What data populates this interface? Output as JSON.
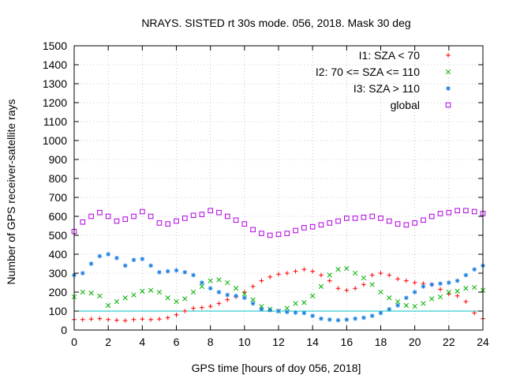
{
  "chart_data": {
    "type": "scatter",
    "title": "NRAYS. SISTED rt 30s mode. 056, 2018. Mask 30 deg",
    "xlabel": "GPS time [hours of doy 056, 2018]",
    "ylabel": "Number of GPS receiver-satellite rays",
    "xlim": [
      0,
      24
    ],
    "ylim": [
      0,
      1500
    ],
    "xticks": [
      0,
      2,
      4,
      6,
      8,
      10,
      12,
      14,
      16,
      18,
      20,
      22,
      24
    ],
    "yticks": [
      0,
      100,
      200,
      300,
      400,
      500,
      600,
      700,
      800,
      900,
      1000,
      1100,
      1200,
      1300,
      1400,
      1500
    ],
    "grid": true,
    "legend_position": "top-right",
    "reference_line": {
      "y": 100,
      "color": "#00c0c0"
    },
    "series": [
      {
        "name": "I1: SZA < 70",
        "marker": "plus",
        "color": "#ff0000",
        "x": [
          0,
          0.5,
          1,
          1.5,
          2,
          2.5,
          3,
          3.5,
          4,
          4.5,
          5,
          5.5,
          6,
          6.5,
          7,
          7.5,
          8,
          8.5,
          9,
          9.5,
          10,
          10.5,
          11,
          11.5,
          12,
          12.5,
          13,
          13.5,
          14,
          14.5,
          15,
          15.5,
          16,
          16.5,
          17,
          17.5,
          18,
          18.5,
          19,
          19.5,
          20,
          20.5,
          21,
          21.5,
          22,
          22.5,
          23,
          23.5,
          24
        ],
        "y": [
          55,
          55,
          58,
          60,
          55,
          52,
          50,
          55,
          58,
          55,
          58,
          65,
          80,
          100,
          115,
          118,
          125,
          140,
          160,
          175,
          200,
          230,
          260,
          280,
          295,
          300,
          310,
          320,
          310,
          290,
          260,
          220,
          210,
          220,
          240,
          290,
          300,
          290,
          270,
          260,
          250,
          245,
          240,
          215,
          190,
          180,
          150,
          90,
          60
        ]
      },
      {
        "name": "I2: 70 <= SZA <= 110",
        "marker": "x",
        "color": "#00b000",
        "x": [
          0,
          0.5,
          1,
          1.5,
          2,
          2.5,
          3,
          3.5,
          4,
          4.5,
          5,
          5.5,
          6,
          6.5,
          7,
          7.5,
          8,
          8.5,
          9,
          9.5,
          10,
          10.5,
          11,
          11.5,
          12,
          12.5,
          13,
          13.5,
          14,
          14.5,
          15,
          15.5,
          16,
          16.5,
          17,
          17.5,
          18,
          18.5,
          19,
          19.5,
          20,
          20.5,
          21,
          21.5,
          22,
          22.5,
          23,
          23.5,
          24
        ],
        "y": [
          175,
          200,
          195,
          180,
          130,
          150,
          170,
          185,
          205,
          210,
          200,
          170,
          150,
          165,
          200,
          230,
          260,
          265,
          250,
          220,
          190,
          160,
          125,
          110,
          100,
          115,
          140,
          145,
          180,
          230,
          290,
          320,
          325,
          300,
          275,
          240,
          200,
          170,
          150,
          130,
          125,
          140,
          165,
          175,
          200,
          205,
          220,
          225,
          210
        ]
      },
      {
        "name": "I3: SZA > 110",
        "marker": "star",
        "color": "#1a7fe0",
        "x": [
          0,
          0.5,
          1,
          1.5,
          2,
          2.5,
          3,
          3.5,
          4,
          4.5,
          5,
          5.5,
          6,
          6.5,
          7,
          7.5,
          8,
          8.5,
          9,
          9.5,
          10,
          10.5,
          11,
          11.5,
          12,
          12.5,
          13,
          13.5,
          14,
          14.5,
          15,
          15.5,
          16,
          16.5,
          17,
          17.5,
          18,
          18.5,
          19,
          19.5,
          20,
          20.5,
          21,
          21.5,
          22,
          22.5,
          23,
          23.5,
          24
        ],
        "y": [
          290,
          300,
          350,
          390,
          400,
          380,
          340,
          370,
          375,
          340,
          305,
          310,
          315,
          305,
          290,
          250,
          220,
          200,
          185,
          180,
          170,
          140,
          110,
          105,
          100,
          95,
          92,
          90,
          75,
          60,
          55,
          52,
          55,
          60,
          65,
          75,
          90,
          110,
          130,
          170,
          200,
          230,
          240,
          245,
          250,
          260,
          290,
          320,
          340
        ]
      },
      {
        "name": "global",
        "marker": "square",
        "color": "#b000e0",
        "x": [
          0,
          0.5,
          1,
          1.5,
          2,
          2.5,
          3,
          3.5,
          4,
          4.5,
          5,
          5.5,
          6,
          6.5,
          7,
          7.5,
          8,
          8.5,
          9,
          9.5,
          10,
          10.5,
          11,
          11.5,
          12,
          12.5,
          13,
          13.5,
          14,
          14.5,
          15,
          15.5,
          16,
          16.5,
          17,
          17.5,
          18,
          18.5,
          19,
          19.5,
          20,
          20.5,
          21,
          21.5,
          22,
          22.5,
          23,
          23.5,
          24
        ],
        "y": [
          520,
          570,
          600,
          620,
          600,
          575,
          585,
          600,
          625,
          600,
          565,
          560,
          575,
          590,
          605,
          610,
          630,
          620,
          600,
          580,
          560,
          530,
          510,
          500,
          505,
          510,
          525,
          540,
          545,
          555,
          565,
          575,
          590,
          590,
          595,
          600,
          590,
          575,
          560,
          555,
          565,
          580,
          600,
          615,
          620,
          630,
          630,
          625,
          615
        ]
      }
    ]
  }
}
